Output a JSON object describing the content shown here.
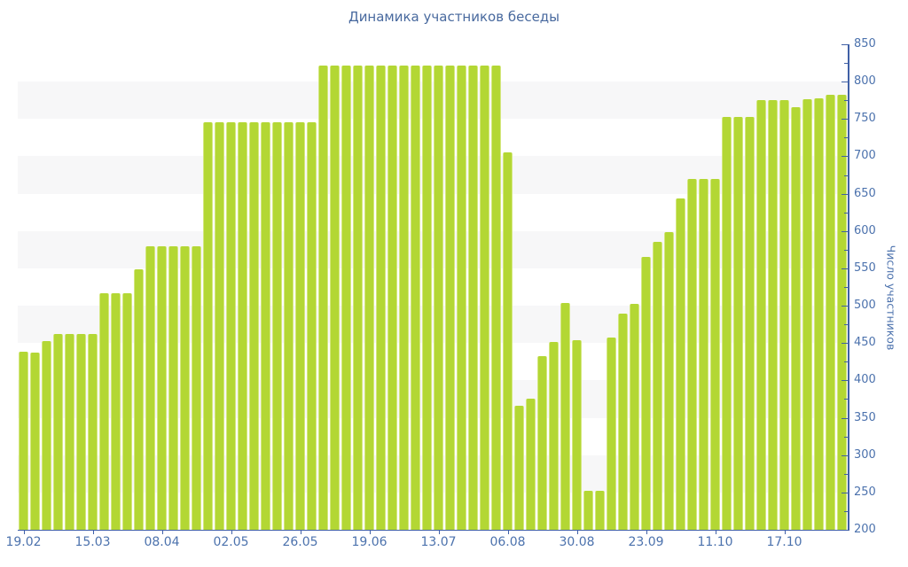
{
  "title": "Динамика участников беседы",
  "y_axis": {
    "title": "Число участников",
    "min": 200,
    "max": 850,
    "major_step": 50,
    "minor_step": 25,
    "tick_labels": [
      "850",
      "800",
      "750",
      "700",
      "650",
      "600",
      "550",
      "500",
      "450",
      "400",
      "350",
      "300",
      "250",
      "200"
    ]
  },
  "x_axis": {
    "tick_labels": [
      "19.02",
      "15.03",
      "08.04",
      "02.05",
      "26.05",
      "19.06",
      "13.07",
      "06.08",
      "30.08",
      "23.09",
      "11.10",
      "17.10"
    ]
  },
  "chart_data": {
    "type": "bar",
    "title": "Динамика участников беседы",
    "xlabel": "",
    "ylabel": "Число участников",
    "ylim": [
      200,
      850
    ],
    "y_major_step": 50,
    "y_minor_step": 25,
    "grid": "alternating horizontal bands every 50 units",
    "legend_position": "none",
    "bar_count": 72,
    "values": [
      438,
      437,
      453,
      462,
      462,
      462,
      462,
      517,
      517,
      517,
      549,
      580,
      580,
      580,
      580,
      580,
      746,
      746,
      746,
      746,
      746,
      746,
      746,
      746,
      746,
      746,
      821,
      821,
      821,
      821,
      821,
      821,
      821,
      821,
      821,
      821,
      821,
      821,
      821,
      821,
      821,
      821,
      705,
      366,
      376,
      432,
      452,
      504,
      454,
      252,
      252,
      458,
      490,
      502,
      565,
      585,
      598,
      644,
      670,
      670,
      670,
      753,
      753,
      753,
      775,
      775,
      775,
      766,
      777,
      778,
      783,
      782
    ],
    "x_ticks": [
      {
        "index": 0,
        "label": "19.02"
      },
      {
        "index": 6,
        "label": "15.03"
      },
      {
        "index": 12,
        "label": "08.04"
      },
      {
        "index": 18,
        "label": "02.05"
      },
      {
        "index": 24,
        "label": "26.05"
      },
      {
        "index": 30,
        "label": "19.06"
      },
      {
        "index": 36,
        "label": "13.07"
      },
      {
        "index": 42,
        "label": "06.08"
      },
      {
        "index": 48,
        "label": "30.08"
      },
      {
        "index": 54,
        "label": "23.09"
      },
      {
        "index": 60,
        "label": "11.10"
      },
      {
        "index": 66,
        "label": "17.10"
      }
    ]
  },
  "colors": {
    "background": "#ffffff",
    "bar": "#b3d734",
    "bar_edge": "#d4e77f",
    "stripe": "#f7f7f8",
    "axis": "#4060a6",
    "tick_label": "#4c72ad",
    "title": "#48699e"
  }
}
